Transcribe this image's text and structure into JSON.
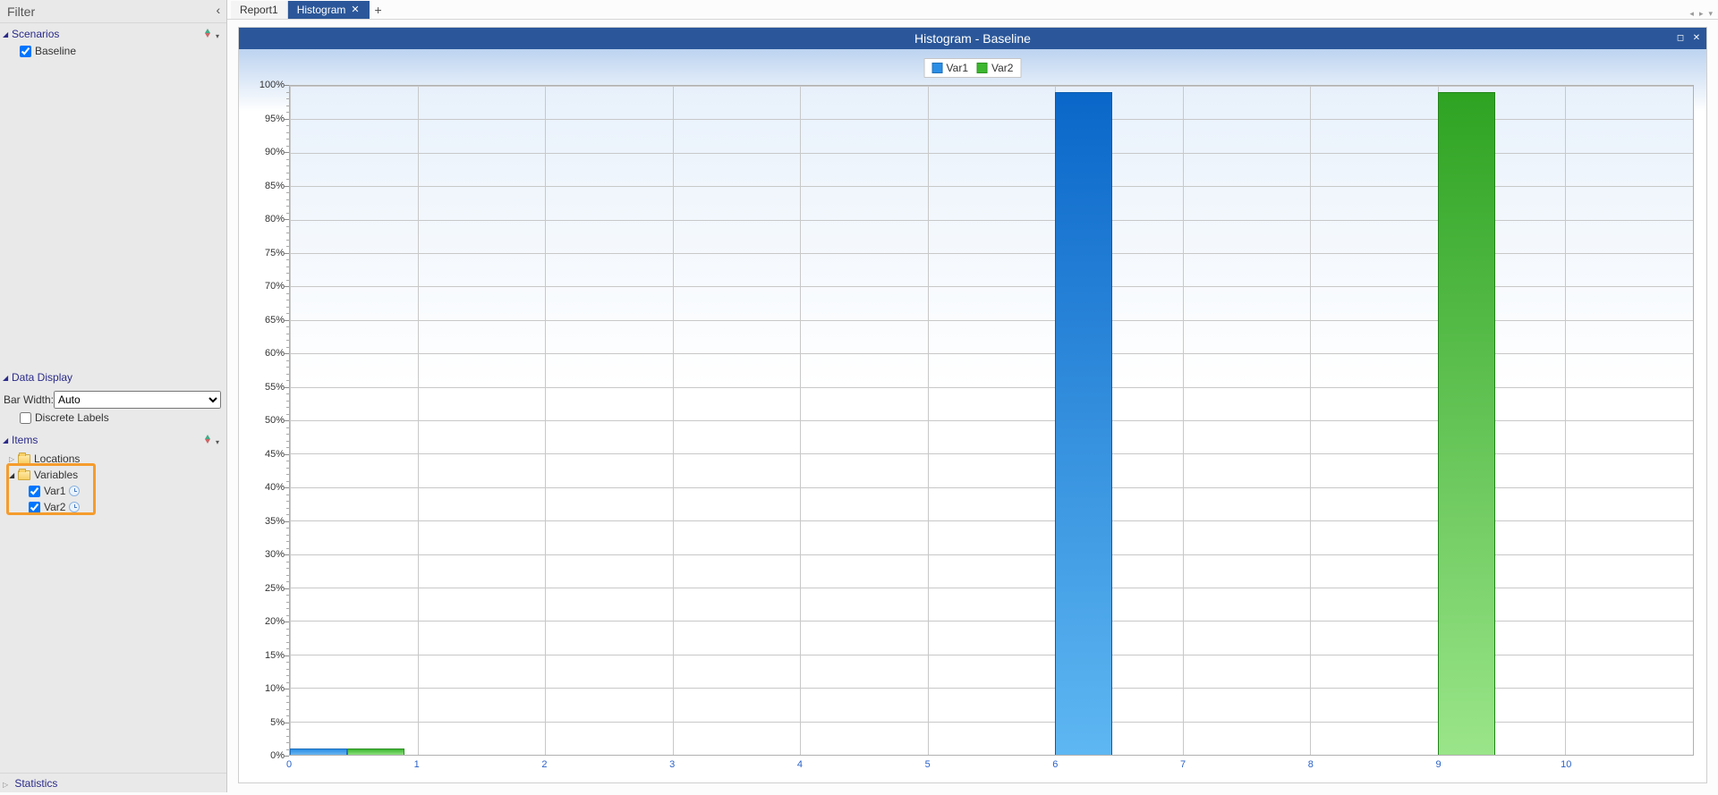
{
  "sidebar": {
    "title": "Filter",
    "sections": {
      "scenarios": {
        "label": "Scenarios",
        "items": [
          {
            "label": "Baseline",
            "checked": true
          }
        ]
      },
      "data_display": {
        "label": "Data Display",
        "bar_width_label": "Bar Width:",
        "bar_width_value": "Auto",
        "discrete_labels_label": "Discrete Labels",
        "discrete_labels_checked": false
      },
      "items": {
        "label": "Items",
        "locations_label": "Locations",
        "variables_label": "Variables",
        "vars": [
          {
            "label": "Var1",
            "checked": true
          },
          {
            "label": "Var2",
            "checked": true
          }
        ]
      },
      "statistics": {
        "label": "Statistics"
      }
    }
  },
  "tabs": {
    "inactive": "Report1",
    "active": "Histogram"
  },
  "chart": {
    "title": "Histogram - Baseline",
    "type": "histogram",
    "legend": [
      {
        "label": "Var1",
        "color": "#2b8ee6"
      },
      {
        "label": "Var2",
        "color": "#3cb72f"
      }
    ],
    "x_ticks": [
      0,
      1,
      2,
      3,
      4,
      5,
      6,
      7,
      8,
      9,
      10
    ],
    "x_tick_color": "#2a62c9",
    "y_ticks_pct": [
      0,
      5,
      10,
      15,
      20,
      25,
      30,
      35,
      40,
      45,
      50,
      55,
      60,
      65,
      70,
      75,
      80,
      85,
      90,
      95,
      100
    ],
    "grid_color": "#c8c8c8",
    "background_top": "#e8f1fb",
    "background_bottom": "#ffffff",
    "panel_border": "#b0b0b0",
    "bars": [
      {
        "series": "Var1",
        "x_start": 0.0,
        "x_end": 0.45,
        "pct": 1.0,
        "fill_top": "#2b8ee6",
        "fill_bottom": "#6cb7f0",
        "border": "#1f6fb9"
      },
      {
        "series": "Var2",
        "x_start": 0.45,
        "x_end": 0.9,
        "pct": 1.0,
        "fill_top": "#3cb72f",
        "fill_bottom": "#8fe07f",
        "border": "#2e8f24"
      },
      {
        "series": "Var1",
        "x_start": 6.0,
        "x_end": 6.45,
        "pct": 99.0,
        "fill_top": "#0a67c9",
        "fill_bottom": "#5eb7f2",
        "border": "#0b5bad"
      },
      {
        "series": "Var2",
        "x_start": 9.0,
        "x_end": 9.45,
        "pct": 99.0,
        "fill_top": "#2ea322",
        "fill_bottom": "#9ae589",
        "border": "#22841a"
      }
    ],
    "xlim": [
      0,
      11
    ],
    "ylim_pct": [
      0,
      100
    ]
  },
  "highlight_box": {
    "color": "#f59c2d"
  }
}
